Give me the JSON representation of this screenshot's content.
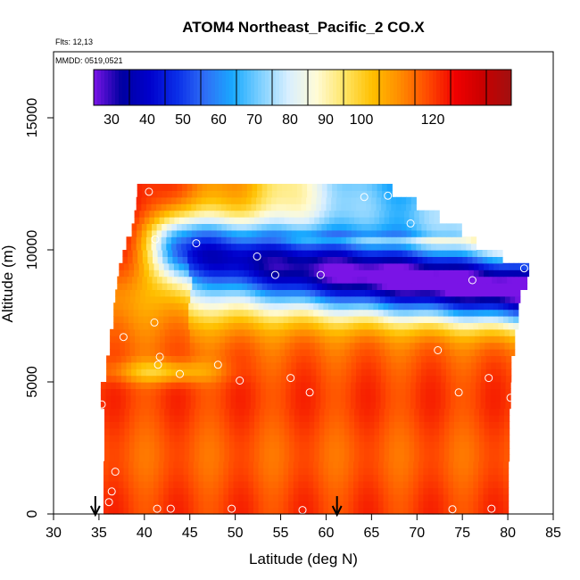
{
  "chart_data": {
    "type": "heatmap",
    "title": "ATOM4 Northeast_Pacific_2 CO.X",
    "flights_label": "Flts: 12,13",
    "mmdd_label": "MMDD: 0519,0521",
    "xlabel": "Latitude (deg N)",
    "ylabel": "Altitude (m)",
    "xlim": [
      30,
      85
    ],
    "ylim": [
      0,
      17500
    ],
    "x_ticks": [
      30,
      35,
      40,
      45,
      50,
      55,
      60,
      65,
      70,
      75,
      80,
      85
    ],
    "y_ticks": [
      0,
      5000,
      10000,
      15000
    ],
    "colorbar": {
      "range": [
        25,
        142
      ],
      "tick_labels": [
        30,
        40,
        50,
        60,
        70,
        80,
        90,
        100,
        120
      ],
      "colors": [
        "#7a14e6",
        "#0000a0",
        "#0000cc",
        "#0a2ee8",
        "#2f6ef5",
        "#19a9ff",
        "#7fd0ff",
        "#d9efff",
        "#fffbd6",
        "#ffe566",
        "#ffc000",
        "#ff8c00",
        "#ff4a00",
        "#f00000",
        "#c80000",
        "#a01010"
      ]
    },
    "arrows_at_latitude": [
      34.6,
      61.2
    ],
    "sample_points": [
      [
        40.5,
        12200
      ],
      [
        64.2,
        12000
      ],
      [
        66.8,
        12050
      ],
      [
        69.3,
        11000
      ],
      [
        41.2,
        10400
      ],
      [
        45.7,
        10250
      ],
      [
        52.4,
        9750
      ],
      [
        54.4,
        9050
      ],
      [
        59.4,
        9050
      ],
      [
        76.1,
        8850
      ],
      [
        81.8,
        9300
      ],
      [
        41.1,
        7250
      ],
      [
        37.7,
        6700
      ],
      [
        41.7,
        5950
      ],
      [
        41.5,
        5650
      ],
      [
        43.9,
        5300
      ],
      [
        48.1,
        5650
      ],
      [
        50.5,
        5050
      ],
      [
        56.1,
        5150
      ],
      [
        58.2,
        4600
      ],
      [
        72.3,
        6200
      ],
      [
        74.6,
        4600
      ],
      [
        77.9,
        5150
      ],
      [
        80.3,
        4400
      ],
      [
        35.3,
        4150
      ],
      [
        36.8,
        1600
      ],
      [
        36.4,
        850
      ],
      [
        36.1,
        450
      ],
      [
        41.4,
        200
      ],
      [
        42.9,
        200
      ],
      [
        49.6,
        200
      ],
      [
        57.4,
        150
      ],
      [
        73.9,
        180
      ],
      [
        78.2,
        200
      ]
    ]
  }
}
